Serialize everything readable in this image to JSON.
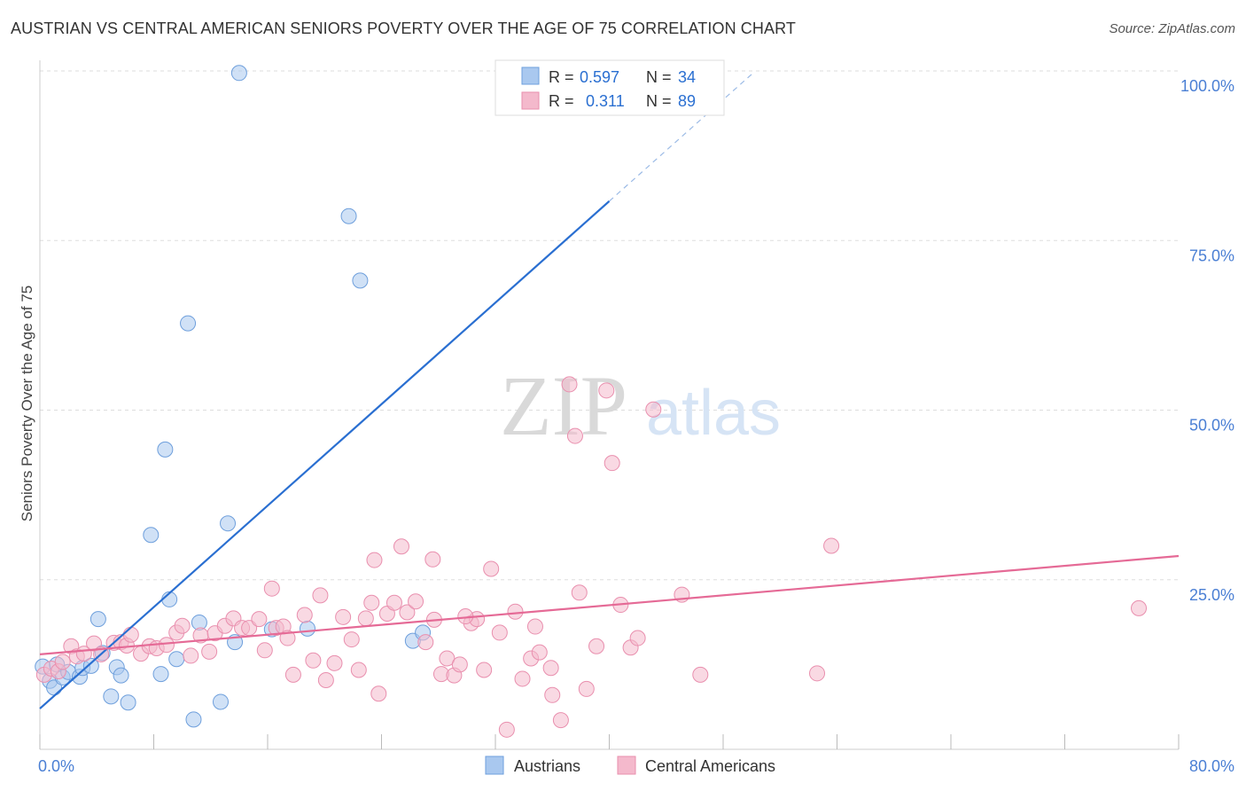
{
  "title": "AUSTRIAN VS CENTRAL AMERICAN SENIORS POVERTY OVER THE AGE OF 75 CORRELATION CHART",
  "source": "Source: ZipAtlas.com",
  "watermark": {
    "zip": "ZIP",
    "atlas": "atlas"
  },
  "colors": {
    "blue_fill": "#a9c8ef",
    "blue_stroke": "#6e9fdc",
    "blue_line": "#2a6fd1",
    "pink_fill": "#f4b9cc",
    "pink_stroke": "#e98fae",
    "pink_line": "#e56a96",
    "tick_label": "#4a7fd4",
    "grid": "#dddddd"
  },
  "legend": {
    "rows": [
      {
        "r_label": "R =",
        "r_value": "0.597",
        "n_label": "N =",
        "n_value": "34"
      },
      {
        "r_label": "R =",
        "r_value": "0.311",
        "n_label": "N =",
        "n_value": "89"
      }
    ]
  },
  "bottom_legend": [
    "Austrians",
    "Central Americans"
  ],
  "chart_data": {
    "type": "scatter",
    "title": "AUSTRIAN VS CENTRAL AMERICAN SENIORS POVERTY OVER THE AGE OF 75 CORRELATION CHART",
    "xlabel": "",
    "ylabel": "Seniors Poverty Over the Age of 75",
    "xlim": [
      0,
      80
    ],
    "ylim": [
      0,
      100
    ],
    "x_tick_labels": [
      "0.0%",
      "80.0%"
    ],
    "y_tick_labels": [
      "25.0%",
      "50.0%",
      "75.0%",
      "100.0%"
    ],
    "y_ticks": [
      25,
      50,
      75,
      100
    ],
    "grid": true,
    "series": [
      {
        "name": "Austrians",
        "points": [
          [
            0.2,
            12.2
          ],
          [
            0.7,
            10.1
          ],
          [
            1.0,
            9.1
          ],
          [
            1.2,
            12.5
          ],
          [
            1.6,
            10.6
          ],
          [
            2.0,
            11.4
          ],
          [
            2.8,
            10.7
          ],
          [
            3.0,
            12.0
          ],
          [
            3.6,
            12.3
          ],
          [
            4.1,
            19.2
          ],
          [
            4.4,
            14.2
          ],
          [
            5.0,
            7.8
          ],
          [
            5.4,
            12.1
          ],
          [
            5.7,
            10.9
          ],
          [
            6.2,
            6.9
          ],
          [
            7.8,
            31.6
          ],
          [
            8.5,
            11.1
          ],
          [
            8.8,
            44.2
          ],
          [
            9.1,
            22.1
          ],
          [
            9.6,
            13.3
          ],
          [
            10.4,
            62.8
          ],
          [
            10.8,
            4.4
          ],
          [
            11.2,
            18.7
          ],
          [
            12.7,
            7.0
          ],
          [
            13.2,
            33.3
          ],
          [
            13.7,
            15.8
          ],
          [
            14.0,
            99.7
          ],
          [
            16.3,
            17.7
          ],
          [
            18.8,
            17.8
          ],
          [
            21.7,
            78.6
          ],
          [
            22.5,
            69.1
          ],
          [
            26.2,
            16.0
          ],
          [
            26.9,
            17.2
          ],
          [
            34.3,
            99.7
          ]
        ],
        "trend": {
          "x0": 0.0,
          "y0": 6.0,
          "x1": 40.0,
          "y1": 80.8,
          "dashed_to": [
            50.0,
            99.5
          ]
        }
      },
      {
        "name": "Central Americans",
        "points": [
          [
            0.3,
            11.0
          ],
          [
            0.8,
            11.9
          ],
          [
            1.3,
            11.5
          ],
          [
            1.6,
            12.9
          ],
          [
            2.2,
            15.2
          ],
          [
            2.6,
            13.7
          ],
          [
            3.1,
            14.1
          ],
          [
            3.8,
            15.6
          ],
          [
            4.3,
            14.0
          ],
          [
            5.2,
            15.7
          ],
          [
            5.7,
            15.8
          ],
          [
            6.1,
            15.3
          ],
          [
            6.4,
            16.9
          ],
          [
            7.1,
            14.1
          ],
          [
            7.7,
            15.2
          ],
          [
            8.2,
            14.9
          ],
          [
            8.9,
            15.4
          ],
          [
            9.6,
            17.2
          ],
          [
            10.0,
            18.2
          ],
          [
            10.6,
            13.8
          ],
          [
            11.3,
            16.8
          ],
          [
            11.9,
            14.4
          ],
          [
            12.3,
            17.1
          ],
          [
            13.0,
            18.2
          ],
          [
            13.6,
            19.3
          ],
          [
            14.2,
            17.9
          ],
          [
            14.7,
            17.9
          ],
          [
            15.4,
            19.2
          ],
          [
            15.8,
            14.6
          ],
          [
            16.3,
            23.7
          ],
          [
            16.6,
            17.9
          ],
          [
            17.1,
            18.1
          ],
          [
            17.4,
            16.4
          ],
          [
            17.8,
            11.0
          ],
          [
            18.6,
            19.8
          ],
          [
            19.2,
            13.1
          ],
          [
            19.7,
            22.7
          ],
          [
            20.1,
            10.2
          ],
          [
            20.7,
            12.7
          ],
          [
            21.3,
            19.5
          ],
          [
            21.9,
            16.2
          ],
          [
            22.4,
            11.7
          ],
          [
            22.9,
            19.3
          ],
          [
            23.3,
            21.6
          ],
          [
            23.8,
            8.2
          ],
          [
            24.4,
            20.0
          ],
          [
            24.9,
            21.6
          ],
          [
            25.4,
            29.9
          ],
          [
            25.8,
            20.2
          ],
          [
            26.4,
            21.8
          ],
          [
            27.1,
            15.8
          ],
          [
            27.7,
            19.1
          ],
          [
            28.2,
            11.1
          ],
          [
            28.6,
            13.4
          ],
          [
            29.1,
            10.9
          ],
          [
            29.5,
            12.5
          ],
          [
            30.3,
            18.6
          ],
          [
            30.7,
            19.2
          ],
          [
            31.2,
            11.7
          ],
          [
            31.7,
            26.6
          ],
          [
            32.3,
            17.2
          ],
          [
            32.8,
            2.9
          ],
          [
            33.4,
            20.3
          ],
          [
            33.9,
            10.4
          ],
          [
            34.5,
            13.4
          ],
          [
            34.8,
            18.1
          ],
          [
            35.1,
            14.3
          ],
          [
            35.9,
            12.0
          ],
          [
            36.6,
            4.3
          ],
          [
            37.2,
            53.8
          ],
          [
            37.6,
            46.2
          ],
          [
            37.9,
            23.1
          ],
          [
            38.4,
            8.9
          ],
          [
            39.1,
            15.2
          ],
          [
            39.8,
            52.9
          ],
          [
            40.2,
            42.2
          ],
          [
            40.8,
            21.3
          ],
          [
            41.5,
            15.0
          ],
          [
            42.0,
            16.4
          ],
          [
            43.1,
            50.1
          ],
          [
            45.1,
            22.8
          ],
          [
            46.4,
            11.0
          ],
          [
            54.6,
            11.2
          ],
          [
            55.6,
            30.0
          ],
          [
            77.2,
            20.8
          ],
          [
            27.6,
            28.0
          ],
          [
            29.9,
            19.6
          ],
          [
            36.0,
            8.0
          ],
          [
            23.5,
            27.9
          ]
        ],
        "trend": {
          "x0": 0.0,
          "y0": 14.0,
          "x1": 80.0,
          "y1": 28.5
        }
      }
    ]
  }
}
